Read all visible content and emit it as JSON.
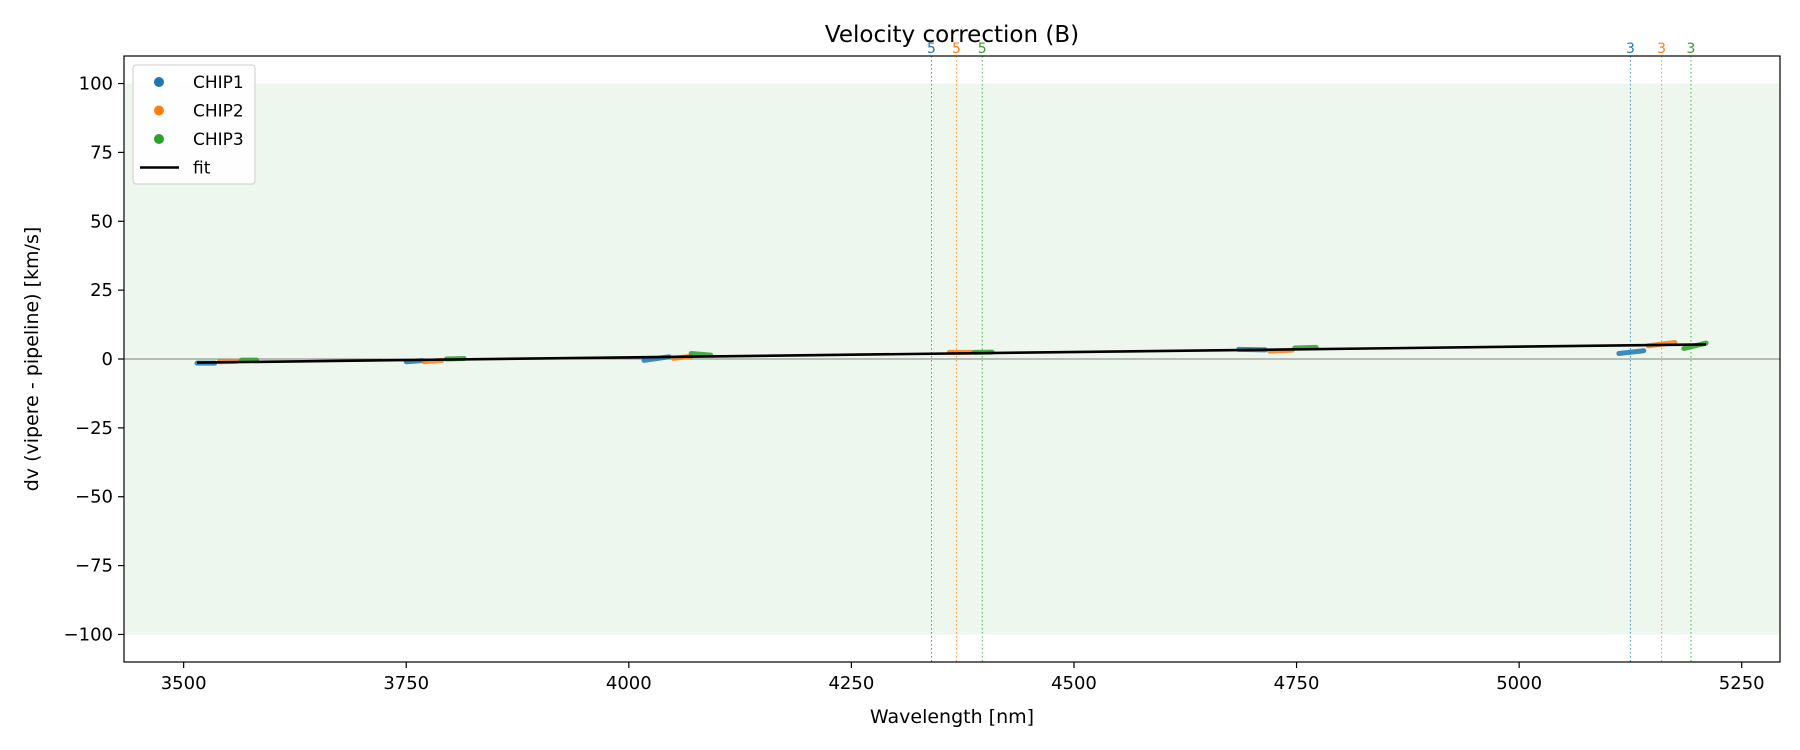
{
  "chart_data": {
    "type": "scatter",
    "title": "Velocity correction (B)",
    "xlabel": "Wavelength [nm]",
    "ylabel": "dv (vipere - pipeline) [km/s]",
    "xlim": [
      3433,
      5293
    ],
    "ylim": [
      -110,
      110
    ],
    "xticks": [
      3500,
      3750,
      4000,
      4250,
      4500,
      4750,
      5000,
      5250
    ],
    "yticks": [
      -100,
      -75,
      -50,
      -25,
      0,
      25,
      50,
      75,
      100
    ],
    "xtick_labels": [
      "3500",
      "3750",
      "4000",
      "4250",
      "4500",
      "4750",
      "5000",
      "5250"
    ],
    "ytick_labels": [
      "−100",
      "−75",
      "−50",
      "−25",
      "0",
      "25",
      "50",
      "75",
      "100"
    ],
    "band": [
      -100,
      100
    ],
    "band_color": "#eef7ee",
    "legend_position": "upper-left",
    "series": [
      {
        "name": "CHIP1",
        "color": "#1f77b4",
        "segments": [
          {
            "x": [
              3515,
              3535
            ],
            "y": [
              -1.5,
              -1.5
            ]
          },
          {
            "x": [
              3750,
              3768
            ],
            "y": [
              -1.0,
              -0.6
            ]
          },
          {
            "x": [
              4017,
              4045
            ],
            "y": [
              -0.5,
              0.8
            ]
          },
          {
            "x": [
              4685,
              4715
            ],
            "y": [
              3.5,
              3.3
            ]
          },
          {
            "x": [
              5112,
              5140
            ],
            "y": [
              2.0,
              3.0
            ]
          }
        ]
      },
      {
        "name": "CHIP2",
        "color": "#ff7f0e",
        "segments": [
          {
            "x": [
              3540,
              3560
            ],
            "y": [
              -1.0,
              -0.8
            ]
          },
          {
            "x": [
              3770,
              3790
            ],
            "y": [
              -1.0,
              -0.5
            ]
          },
          {
            "x": [
              4050,
              4070
            ],
            "y": [
              0.2,
              1.0
            ]
          },
          {
            "x": [
              4360,
              4385
            ],
            "y": [
              2.4,
              2.4
            ]
          },
          {
            "x": [
              4720,
              4745
            ],
            "y": [
              2.8,
              3.2
            ]
          },
          {
            "x": [
              5145,
              5175
            ],
            "y": [
              4.8,
              6.0
            ]
          }
        ]
      },
      {
        "name": "CHIP3",
        "color": "#2ca02c",
        "segments": [
          {
            "x": [
              3565,
              3582
            ],
            "y": [
              -0.4,
              -0.4
            ]
          },
          {
            "x": [
              3795,
              3815
            ],
            "y": [
              0.0,
              0.2
            ]
          },
          {
            "x": [
              4070,
              4092
            ],
            "y": [
              2.0,
              1.4
            ]
          },
          {
            "x": [
              4388,
              4408
            ],
            "y": [
              2.4,
              2.5
            ]
          },
          {
            "x": [
              4748,
              4772
            ],
            "y": [
              4.0,
              4.2
            ]
          },
          {
            "x": [
              5185,
              5210
            ],
            "y": [
              3.8,
              5.8
            ]
          }
        ]
      }
    ],
    "fit": {
      "name": "fit",
      "color": "#000000",
      "x": [
        3515,
        5210
      ],
      "y": [
        -1.3,
        5.3
      ]
    },
    "order_markers": [
      {
        "x": 4340,
        "label": "5",
        "color": "#1f77b4"
      },
      {
        "x": 4368,
        "label": "5",
        "color": "#ff7f0e"
      },
      {
        "x": 4397,
        "label": "5",
        "color": "#2ca02c"
      },
      {
        "x": 5125,
        "label": "3",
        "color": "#1f77b4"
      },
      {
        "x": 5160,
        "label": "3",
        "color": "#ff7f0e"
      },
      {
        "x": 5193,
        "label": "3",
        "color": "#2ca02c"
      }
    ],
    "legend": [
      {
        "label": "CHIP1",
        "kind": "point",
        "color": "#1f77b4"
      },
      {
        "label": "CHIP2",
        "kind": "point",
        "color": "#ff7f0e"
      },
      {
        "label": "CHIP3",
        "kind": "point",
        "color": "#2ca02c"
      },
      {
        "label": "fit",
        "kind": "line",
        "color": "#000000"
      }
    ]
  }
}
